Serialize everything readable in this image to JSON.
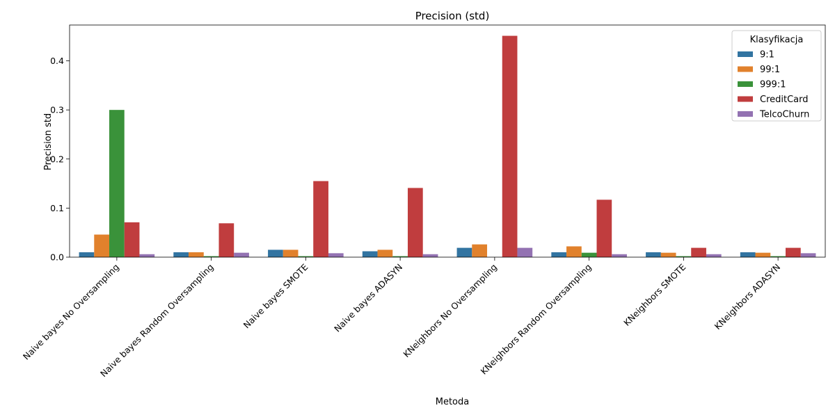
{
  "chart_data": {
    "type": "bar",
    "title": "Precision (std)",
    "xlabel": "Metoda",
    "ylabel": "Precision std",
    "ylim": [
      0,
      0.473
    ],
    "yticks": [
      0.0,
      0.1,
      0.2,
      0.3,
      0.4
    ],
    "ytick_labels": [
      "0.0",
      "0.1",
      "0.2",
      "0.3",
      "0.4"
    ],
    "grid": false,
    "legend": {
      "title": "Klasyfikacja",
      "position": "top-right"
    },
    "categories": [
      "Naive bayes No Oversampling",
      "Naive bayes Random Oversampling",
      "Naive bayes SMOTE",
      "Naive bayes ADASYN",
      "KNeighbors No Oversampling",
      "KNeighbors Random Oversampling",
      "KNeighbors SMOTE",
      "KNeighbors ADASYN"
    ],
    "series": [
      {
        "name": "9:1",
        "color": "#3274a1",
        "values": [
          0.01,
          0.01,
          0.015,
          0.012,
          0.019,
          0.01,
          0.01,
          0.01
        ]
      },
      {
        "name": "99:1",
        "color": "#e1812c",
        "values": [
          0.046,
          0.01,
          0.015,
          0.015,
          0.026,
          0.022,
          0.009,
          0.009
        ]
      },
      {
        "name": "999:1",
        "color": "#3a923a",
        "values": [
          0.3,
          0.002,
          0.002,
          0.002,
          0.0,
          0.009,
          0.002,
          0.002
        ]
      },
      {
        "name": "CreditCard",
        "color": "#c03d3e",
        "values": [
          0.071,
          0.069,
          0.155,
          0.141,
          0.451,
          0.117,
          0.019,
          0.019
        ]
      },
      {
        "name": "TelcoChurn",
        "color": "#9372b2",
        "values": [
          0.006,
          0.009,
          0.008,
          0.006,
          0.019,
          0.006,
          0.006,
          0.008
        ]
      }
    ]
  }
}
